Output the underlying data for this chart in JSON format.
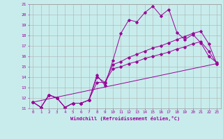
{
  "xlabel": "Windchill (Refroidissement éolien,°C)",
  "bg_color": "#c8ecec",
  "line_color": "#990099",
  "grid_color": "#b0b0b0",
  "xlim": [
    -0.5,
    23.5
  ],
  "ylim": [
    11,
    21
  ],
  "xticks": [
    0,
    1,
    2,
    3,
    4,
    5,
    6,
    7,
    8,
    9,
    10,
    11,
    12,
    13,
    14,
    15,
    16,
    17,
    18,
    19,
    20,
    21,
    22,
    23
  ],
  "yticks": [
    11,
    12,
    13,
    14,
    15,
    16,
    17,
    18,
    19,
    20,
    21
  ],
  "line1_x": [
    0,
    1,
    2,
    3,
    4,
    5,
    6,
    7,
    8,
    9,
    10,
    11,
    12,
    13,
    14,
    15,
    16,
    17,
    18,
    19,
    20,
    21,
    22,
    23
  ],
  "line1_y": [
    11.6,
    11.1,
    12.3,
    12.0,
    11.1,
    11.5,
    11.5,
    11.8,
    14.2,
    13.2,
    15.6,
    18.2,
    19.5,
    19.3,
    20.2,
    20.8,
    19.9,
    20.5,
    18.3,
    17.6,
    18.1,
    17.3,
    16.0,
    15.4
  ],
  "line2_x": [
    0,
    1,
    2,
    3,
    4,
    5,
    6,
    7,
    8,
    9,
    10,
    11,
    12,
    13,
    14,
    15,
    16,
    17,
    18,
    19,
    20,
    21,
    22,
    23
  ],
  "line2_y": [
    11.6,
    11.1,
    12.3,
    12.0,
    11.1,
    11.5,
    11.5,
    11.8,
    14.0,
    13.5,
    15.2,
    15.5,
    15.9,
    16.2,
    16.5,
    16.8,
    17.0,
    17.3,
    17.6,
    17.9,
    18.2,
    18.4,
    17.2,
    15.3
  ],
  "line3_x": [
    0,
    1,
    2,
    3,
    4,
    5,
    6,
    7,
    8,
    9,
    10,
    11,
    12,
    13,
    14,
    15,
    16,
    17,
    18,
    19,
    20,
    21,
    22,
    23
  ],
  "line3_y": [
    11.6,
    11.1,
    12.3,
    12.0,
    11.1,
    11.5,
    11.5,
    11.8,
    13.5,
    13.5,
    14.8,
    15.0,
    15.3,
    15.5,
    15.8,
    16.0,
    16.2,
    16.4,
    16.7,
    16.9,
    17.2,
    17.4,
    16.5,
    15.3
  ],
  "line4_x": [
    0,
    23
  ],
  "line4_y": [
    11.6,
    15.3
  ]
}
